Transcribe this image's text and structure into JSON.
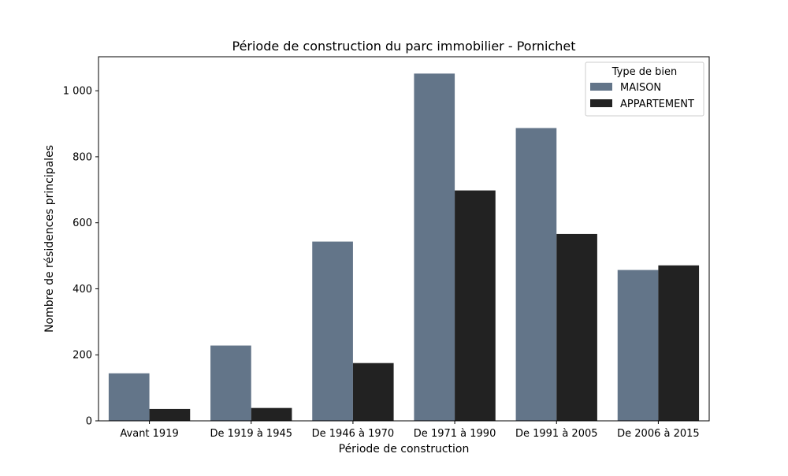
{
  "chart_data": {
    "type": "bar",
    "title": "Période de construction du parc immobilier - Pornichet",
    "xlabel": "Période de construction",
    "ylabel": "Nombre de résidences principales",
    "categories": [
      "Avant 1919",
      "De 1919 à 1945",
      "De 1946 à 1970",
      "De 1971 à 1990",
      "De 1991 à 2005",
      "De 2006 à 2015"
    ],
    "series": [
      {
        "name": "MAISON",
        "color": "#637589",
        "values": [
          144,
          228,
          543,
          1052,
          887,
          457
        ]
      },
      {
        "name": "APPARTEMENT",
        "color": "#222222",
        "values": [
          36,
          39,
          175,
          698,
          566,
          471
        ]
      }
    ],
    "ylim": [
      0,
      1103
    ],
    "yticks": [
      0,
      200,
      400,
      600,
      800,
      1000
    ],
    "ytick_labels": [
      "0",
      "200",
      "400",
      "600",
      "800",
      "1 000"
    ],
    "legend": {
      "title": "Type de bien",
      "position": "top-right"
    },
    "grid": false
  }
}
